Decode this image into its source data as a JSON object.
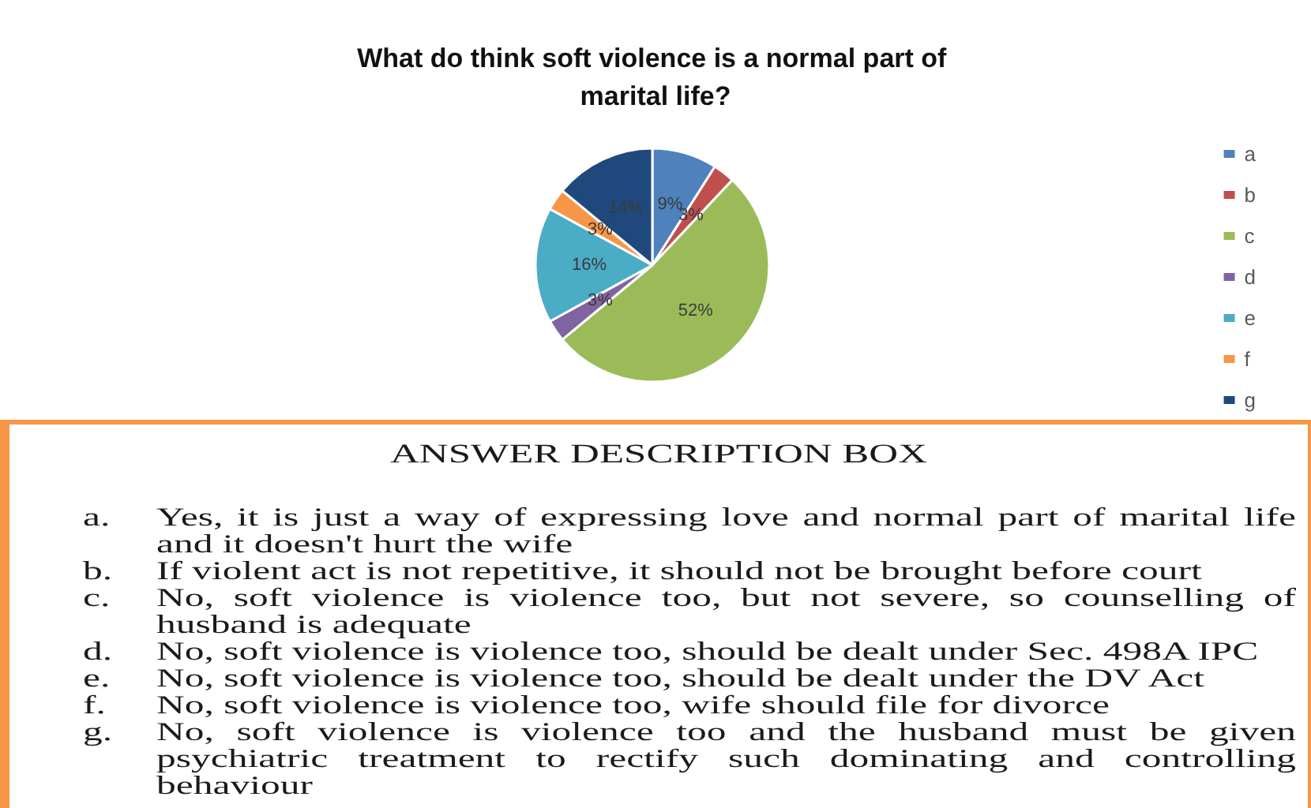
{
  "chart_data": {
    "type": "pie",
    "title": "What do think soft violence is a normal part of marital life?",
    "categories": [
      "a",
      "b",
      "c",
      "d",
      "e",
      "f",
      "g"
    ],
    "values": [
      9,
      3,
      52,
      3,
      16,
      3,
      14
    ],
    "colors": [
      "#4f81bd",
      "#c0504d",
      "#9bbb59",
      "#8064a2",
      "#4bacc6",
      "#f79646",
      "#1f497d"
    ],
    "value_labels": [
      "9%",
      "3%",
      "52%",
      "3%",
      "16%",
      "3%",
      "14%"
    ],
    "legend": "right",
    "annotations": [
      "ANSWER DESCRIPTION BOX",
      "a. Yes, it is just a way of expressing love and normal part of marital life and it doesn't hurt the wife",
      "b. If violent act is not repetitive, it should not be brought before court",
      "c. No, soft violence is violence too, but not severe, so counselling of husband is adequate",
      "d. No, soft violence is violence too, should be dealt under Sec. 498A IPC",
      "e. No, soft violence is violence too, should be dealt under the DV Act",
      "f. No, soft violence is violence too, wife should file for divorce",
      "g. No, soft violence is violence too and the husband must be given psychiatric treatment to rectify such dominating and controlling behaviour"
    ]
  }
}
